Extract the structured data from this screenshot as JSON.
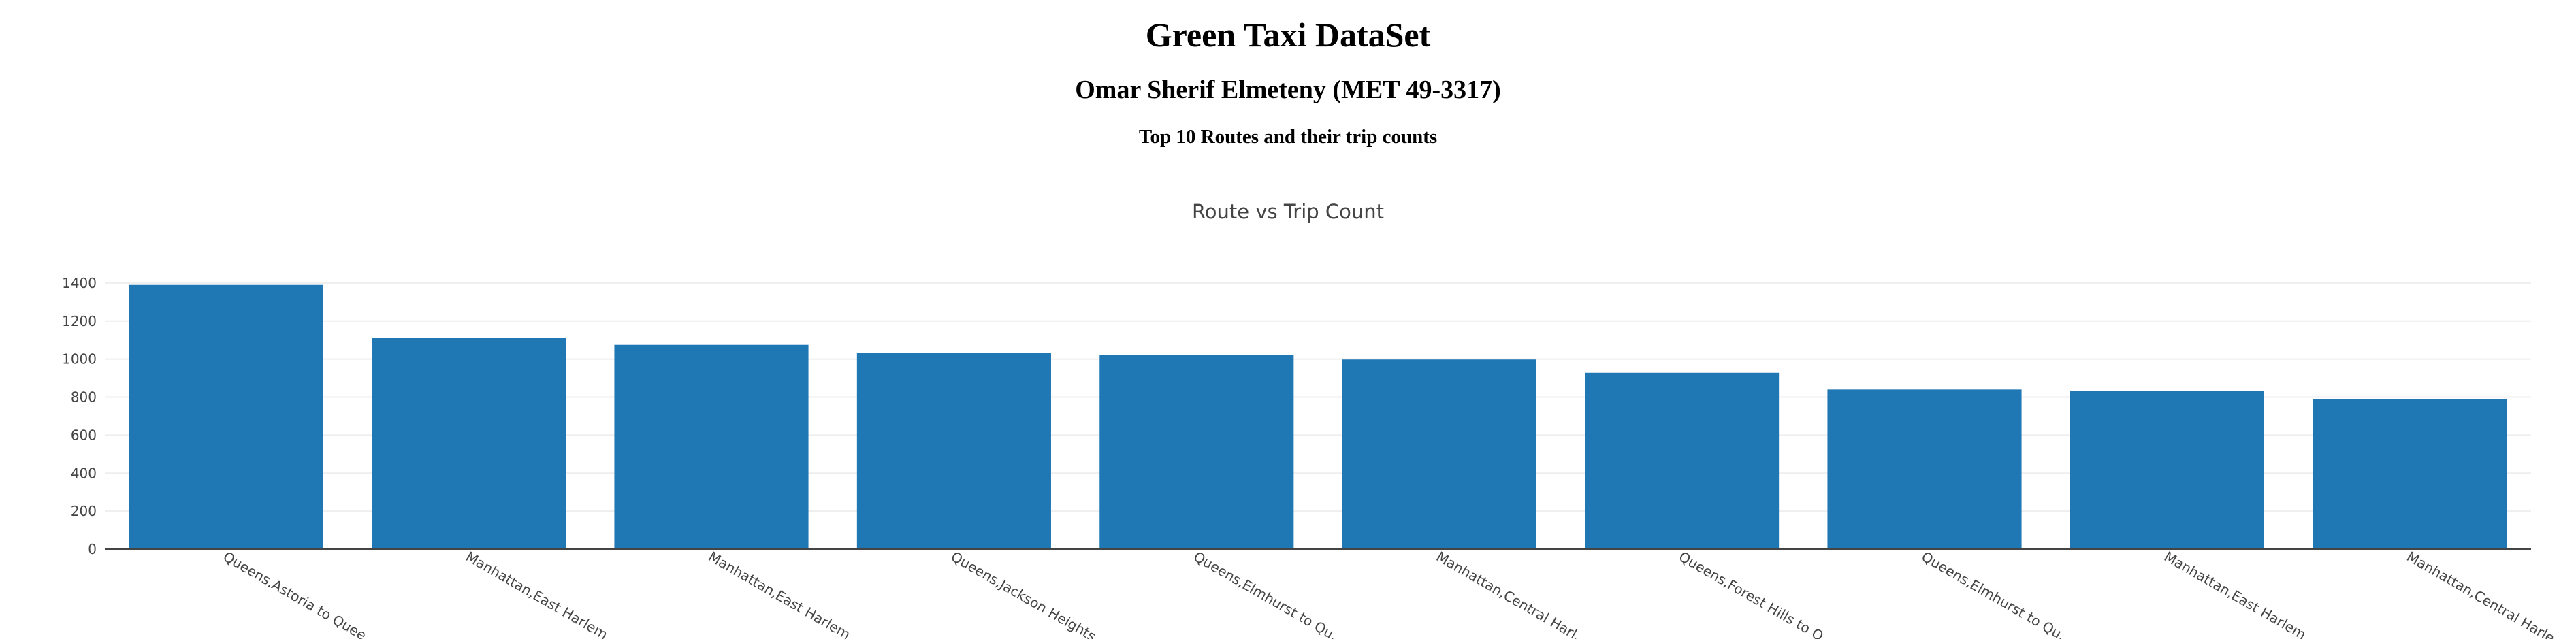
{
  "header": {
    "title": "Green Taxi DataSet",
    "author": "Omar Sherif Elmeteny (MET 49-3317)",
    "subtitle": "Top 10 Routes and their trip counts"
  },
  "chart_data": {
    "type": "bar",
    "title": "Route vs Trip Count",
    "categories": [
      "Queens,Astoria to Quee",
      "Manhattan,East Harlem ...",
      "Manhattan,East Harlem ...",
      "Queens,Jackson Heights...",
      "Queens,Elmhurst to Qu...",
      "Manhattan,Central Harl...",
      "Queens,Forest Hills to Q...",
      "Queens,Elmhurst to Qu...",
      "Manhattan,East Harlem ...",
      "Manhattan,Central Harle"
    ],
    "values": [
      1390,
      1110,
      1075,
      1032,
      1023,
      998,
      928,
      840,
      831,
      788
    ],
    "color": "#1f77b4",
    "ylim": [
      0,
      1500
    ],
    "yticks": [
      0,
      200,
      400,
      600,
      800,
      1000,
      1200,
      1400
    ],
    "grid": true
  }
}
